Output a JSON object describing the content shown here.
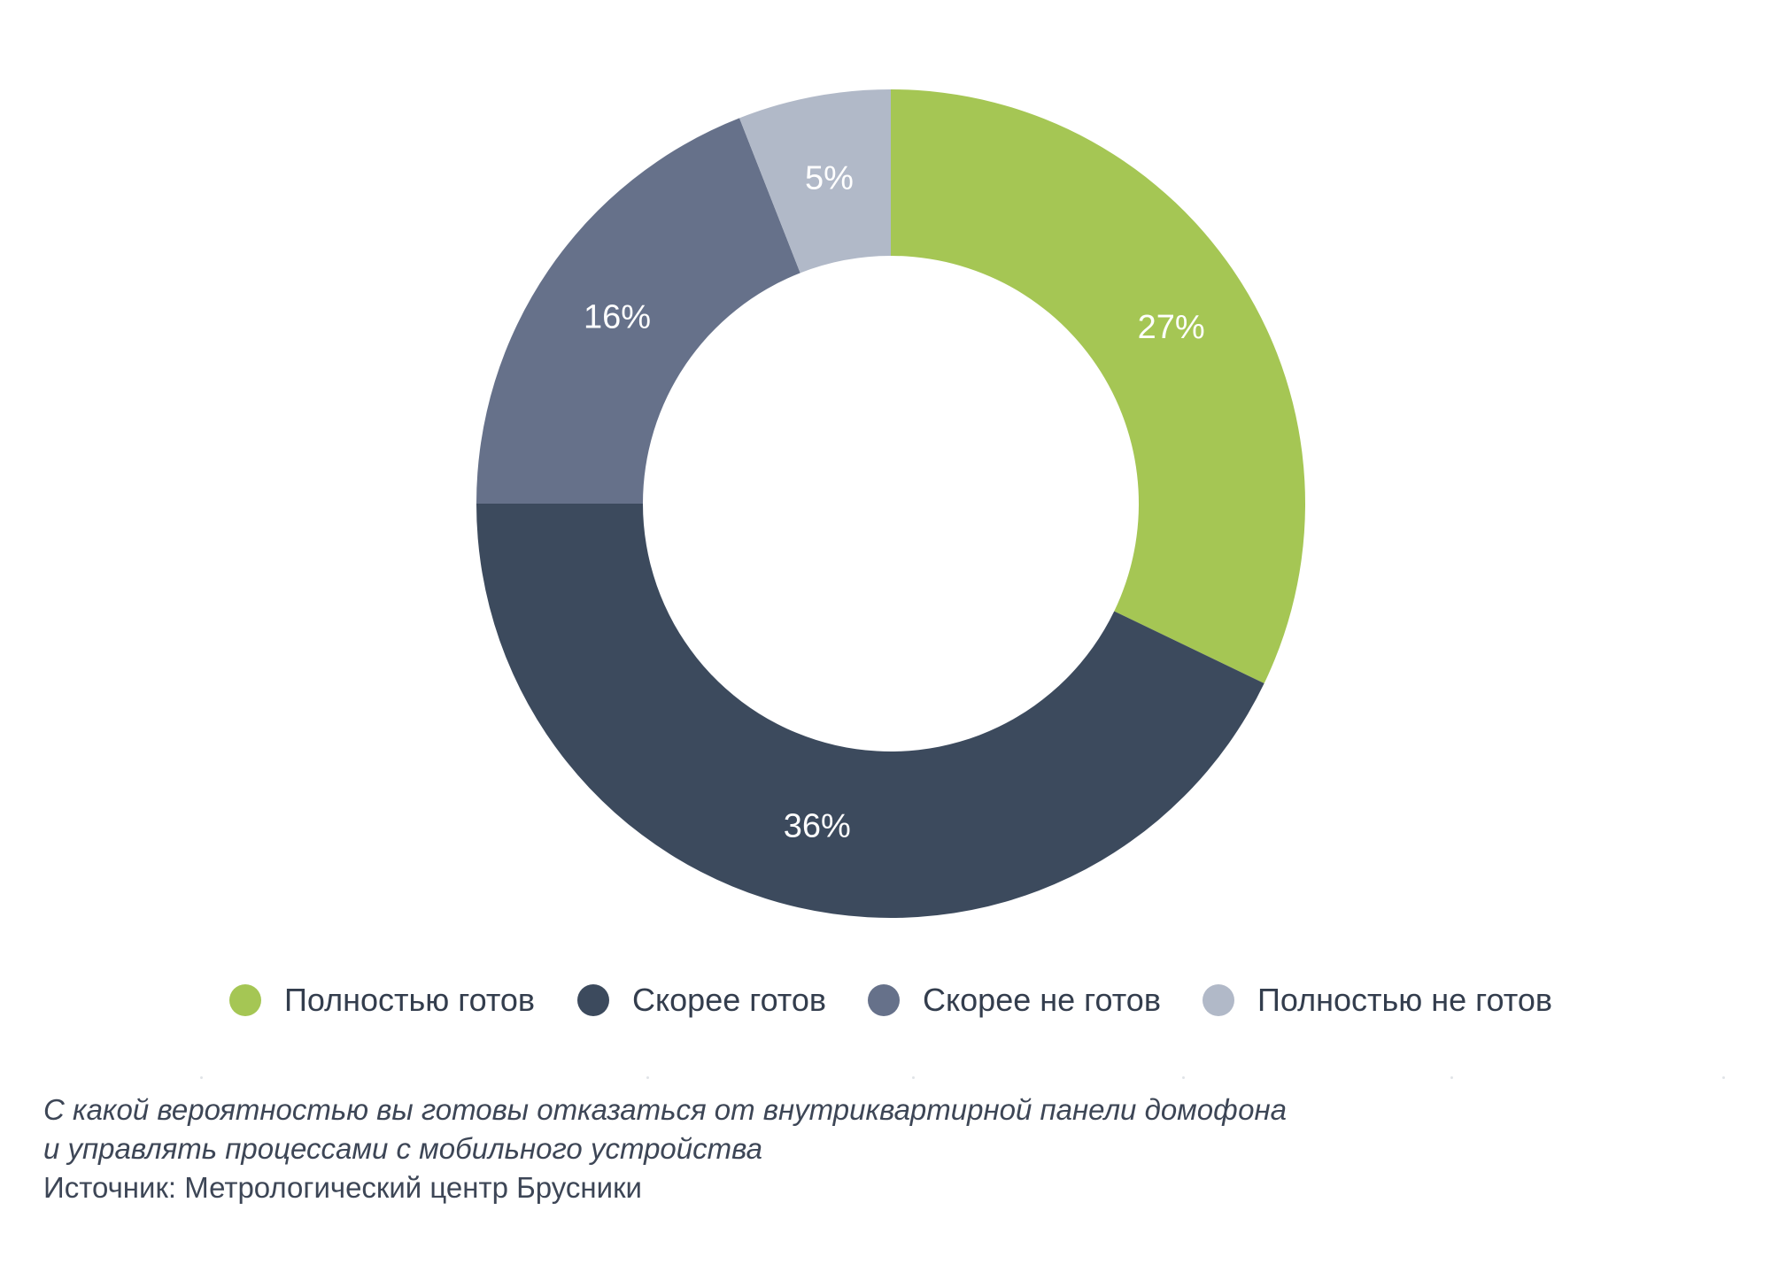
{
  "chart_data": {
    "type": "pie",
    "donut": true,
    "categories": [
      "Полностью готов",
      "Скорее готов",
      "Скорее не готов",
      "Полностью не готов"
    ],
    "values": [
      27,
      36,
      16,
      5
    ],
    "value_labels": [
      "27%",
      "36%",
      "16%",
      "5%"
    ],
    "colors": [
      "#a5c654",
      "#3c4a5d",
      "#66718a",
      "#b1b9c8"
    ],
    "legend_position": "bottom",
    "title": ""
  },
  "legend": {
    "items": [
      {
        "label": "Полностью готов",
        "color": "#a5c654"
      },
      {
        "label": "Скорее готов",
        "color": "#3c4a5d"
      },
      {
        "label": "Скорее не готов",
        "color": "#66718a"
      },
      {
        "label": "Полностью не готов",
        "color": "#b1b9c8"
      }
    ]
  },
  "caption": {
    "question_line1": "С какой вероятностью вы готовы отказаться от внутриквартирной панели домофона",
    "question_line2": "и управлять процессами с мобильного устройства",
    "source": "Источник: Метрологический центр Брусники"
  }
}
